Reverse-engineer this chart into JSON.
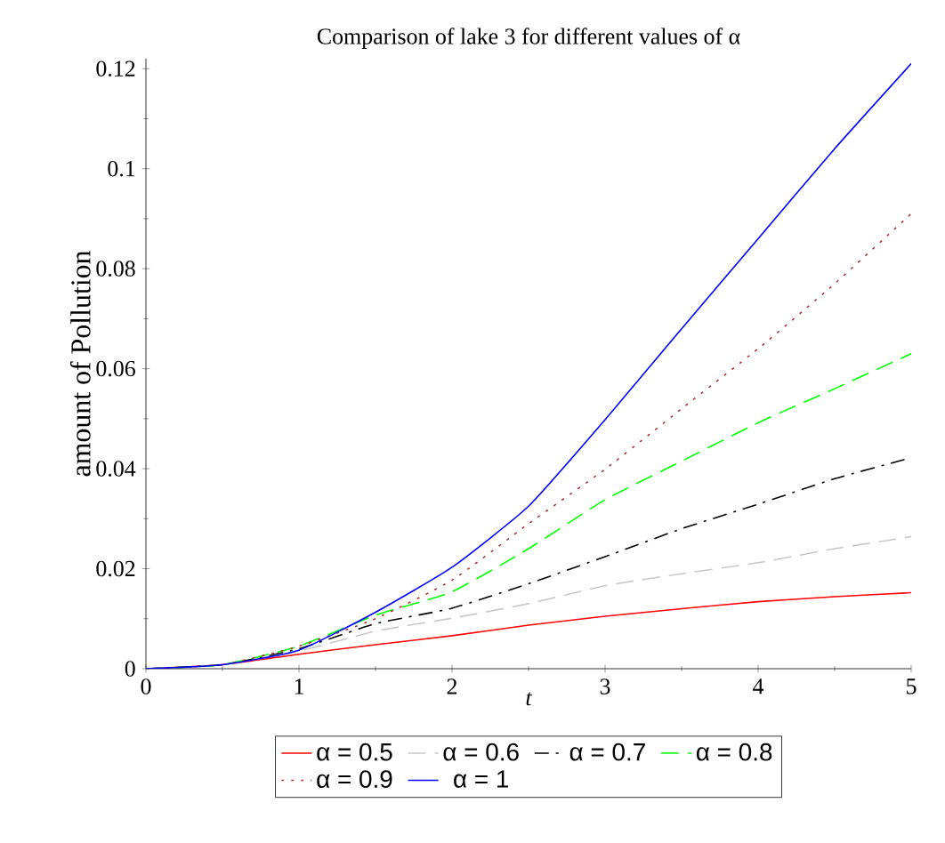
{
  "chart_data": {
    "type": "line",
    "title": "Comparison of lake 3 for different values of α",
    "xlabel": "t",
    "ylabel": "amount of Pollution",
    "x": [
      0,
      0.5,
      1,
      1.5,
      2,
      2.5,
      3,
      3.5,
      4,
      4.5,
      5
    ],
    "series": [
      {
        "name": "α = 0.5",
        "color": "#ff0000",
        "line_style": "solid",
        "values": [
          0,
          0.0008,
          0.0029,
          0.0048,
          0.0066,
          0.0087,
          0.0105,
          0.012,
          0.0134,
          0.0144,
          0.0152
        ]
      },
      {
        "name": "α = 0.6",
        "color": "#c8c8c8",
        "line_style": "dashed",
        "values": [
          0,
          0.0008,
          0.0035,
          0.0075,
          0.0101,
          0.013,
          0.0166,
          0.019,
          0.0212,
          0.024,
          0.0264
        ]
      },
      {
        "name": "α = 0.7",
        "color": "#000000",
        "line_style": "dashdot",
        "values": [
          0,
          0.0008,
          0.004,
          0.009,
          0.0121,
          0.017,
          0.0224,
          0.028,
          0.0329,
          0.038,
          0.0422
        ]
      },
      {
        "name": "α = 0.8",
        "color": "#00ff00",
        "line_style": "dashed",
        "values": [
          0,
          0.0008,
          0.0045,
          0.0107,
          0.0154,
          0.024,
          0.0338,
          0.0415,
          0.0492,
          0.056,
          0.063
        ]
      },
      {
        "name": "α = 0.9",
        "color": "#b03030",
        "line_style": "dotted",
        "values": [
          0,
          0.0008,
          0.0045,
          0.01,
          0.0177,
          0.029,
          0.0399,
          0.052,
          0.064,
          0.077,
          0.091
        ]
      },
      {
        "name": "α = 1",
        "color": "#0000ff",
        "line_style": "solid",
        "values": [
          0,
          0.0008,
          0.0037,
          0.0113,
          0.0203,
          0.0325,
          0.0498,
          0.068,
          0.086,
          0.104,
          0.121
        ]
      }
    ],
    "xlim": [
      0,
      5
    ],
    "ylim": [
      0,
      0.122
    ],
    "xticks": [
      0,
      1,
      2,
      3,
      4,
      5
    ],
    "yticks": [
      0,
      0.02,
      0.04,
      0.06,
      0.08,
      0.1,
      0.12
    ],
    "grid": false,
    "legend": "bottom",
    "marker": "none"
  }
}
